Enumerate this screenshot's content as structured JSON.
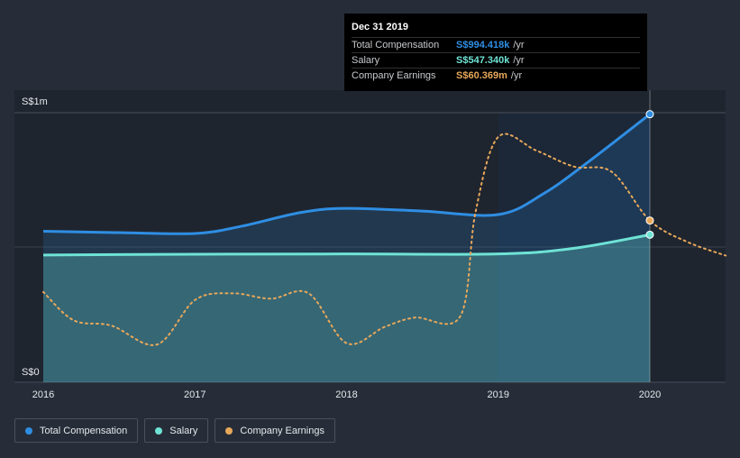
{
  "chart_data": {
    "type": "line",
    "title": "",
    "xlabel": "",
    "ylabel": "",
    "x_ticks": [
      "2016",
      "2017",
      "2018",
      "2019",
      "2020"
    ],
    "y_ticks": [
      "S$0",
      "S$1m"
    ],
    "ylim": [
      0,
      1000000
    ],
    "grid": true,
    "legend_position": "bottom-left",
    "series": [
      {
        "name": "Total Compensation",
        "color": "#2f8ee3",
        "style": "solid-area",
        "x": [
          2016.0,
          2016.5,
          2017.0,
          2017.3,
          2017.7,
          2018.0,
          2018.5,
          2019.0,
          2019.3,
          2019.6,
          2020.0
        ],
        "y": [
          560000,
          555000,
          552000,
          578000,
          630000,
          645000,
          635000,
          622000,
          700000,
          820000,
          994418
        ]
      },
      {
        "name": "Salary",
        "color": "#6fe3d6",
        "style": "solid-area",
        "x": [
          2016.0,
          2017.0,
          2018.0,
          2019.0,
          2019.5,
          2020.0
        ],
        "y": [
          472000,
          475000,
          476000,
          476000,
          497000,
          547340
        ]
      },
      {
        "name": "Company Earnings",
        "color": "#e8a85a",
        "style": "dotted",
        "x": [
          2016.0,
          2016.2,
          2016.45,
          2016.75,
          2017.0,
          2017.25,
          2017.5,
          2017.75,
          2018.0,
          2018.25,
          2018.45,
          2018.75,
          2018.85,
          2019.0,
          2019.25,
          2019.5,
          2019.75,
          2020.0,
          2020.25,
          2020.5
        ],
        "y": [
          335000,
          230000,
          210000,
          140000,
          305000,
          330000,
          310000,
          330000,
          145000,
          205000,
          240000,
          245000,
          630000,
          910000,
          860000,
          800000,
          780000,
          600000,
          520000,
          470000
        ]
      }
    ],
    "highlight_x": 2020.0,
    "shaded_from_x": 2019.0
  },
  "tooltip": {
    "date": "Dec 31 2019",
    "rows": [
      {
        "label": "Total Compensation",
        "value": "S$994.418k",
        "unit": "/yr",
        "color": "#2f8ee3"
      },
      {
        "label": "Salary",
        "value": "S$547.340k",
        "unit": "/yr",
        "color": "#6fe3d6"
      },
      {
        "label": "Company Earnings",
        "value": "S$60.369m",
        "unit": "/yr",
        "color": "#e8a85a"
      }
    ]
  },
  "legend": [
    {
      "label": "Total Compensation",
      "color": "#2f8ee3"
    },
    {
      "label": "Salary",
      "color": "#6fe3d6"
    },
    {
      "label": "Company Earnings",
      "color": "#e8a85a"
    }
  ]
}
